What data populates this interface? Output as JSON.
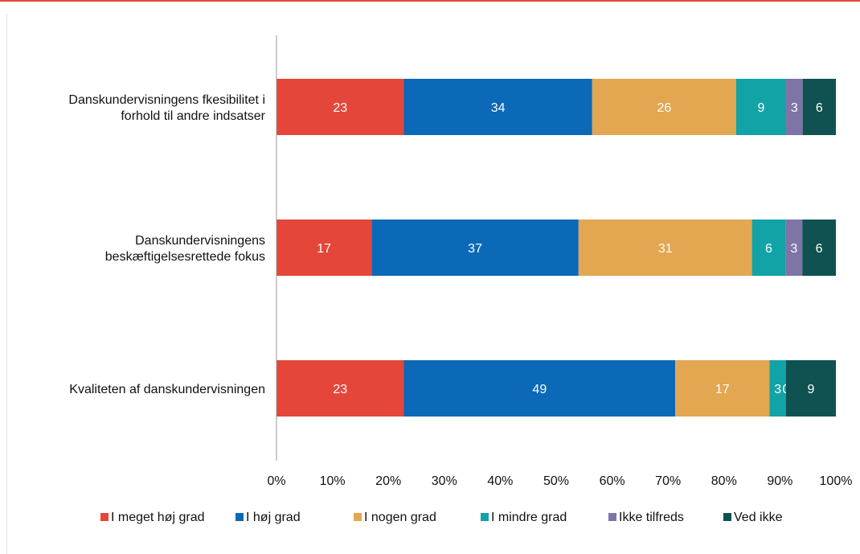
{
  "chart_data": {
    "type": "bar",
    "orientation": "horizontal",
    "stacked": true,
    "categories": [
      [
        "Danskundervisningens fkesibilitet i",
        "forhold til andre indsatser"
      ],
      [
        "Danskundervisningens",
        "beskæftigelsesrettede fokus"
      ],
      [
        "Kvaliteten af danskundervisningen"
      ]
    ],
    "series": [
      {
        "name": "I meget høj grad",
        "color": "#e4473a",
        "values": [
          23,
          17,
          23
        ],
        "labels": [
          "23",
          "17",
          "23"
        ]
      },
      {
        "name": "I høj grad",
        "color": "#0b69b7",
        "values": [
          34,
          37,
          49
        ],
        "labels": [
          "34",
          "37",
          "49"
        ]
      },
      {
        "name": "I nogen grad",
        "color": "#e3a651",
        "values": [
          26,
          31,
          17
        ],
        "labels": [
          "26",
          "31",
          "17"
        ]
      },
      {
        "name": "I mindre grad",
        "color": "#12a3a7",
        "values": [
          9,
          6,
          3
        ],
        "labels": [
          "9",
          "6",
          "3"
        ]
      },
      {
        "name": "Ikke tilfreds",
        "color": "#7e74a8",
        "values": [
          3,
          3,
          0
        ],
        "labels": [
          "3",
          "3",
          "0"
        ]
      },
      {
        "name": "Ved ikke",
        "color": "#0f5251",
        "values": [
          6,
          6,
          9
        ],
        "labels": [
          "6",
          "6",
          "9"
        ]
      }
    ],
    "xlim": [
      0,
      100
    ],
    "xticks": [
      "0%",
      "10%",
      "20%",
      "30%",
      "40%",
      "50%",
      "60%",
      "70%",
      "80%",
      "90%",
      "100%"
    ],
    "legend": "bottom",
    "grid": false
  }
}
